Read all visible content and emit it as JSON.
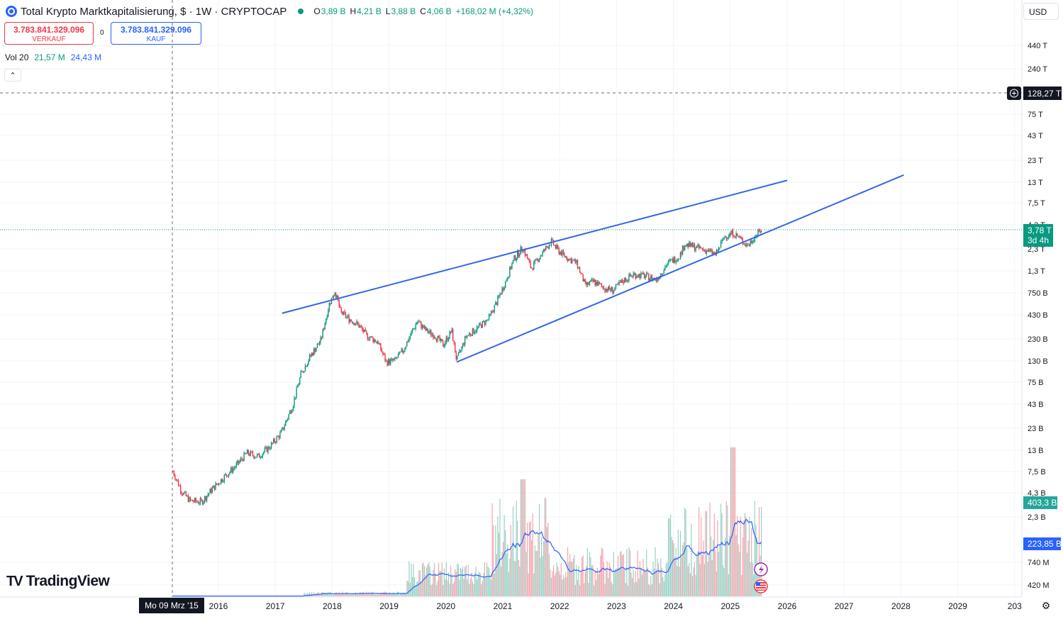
{
  "header": {
    "symbol_title": "Total Krypto Marktkapitalisierung, $ · 1W · CRYPTOCAP",
    "ohlc": [
      {
        "k": "O",
        "v": "3,89 B"
      },
      {
        "k": "H",
        "v": "4,21 B"
      },
      {
        "k": "L",
        "v": "3,88 B"
      },
      {
        "k": "C",
        "v": "4,06 B"
      },
      {
        "k": "",
        "v": "+168,02 M (+4,32%)"
      }
    ]
  },
  "quote": {
    "sell_price": "3.783.841.329.096",
    "sell_label": "VERKAUF",
    "spread": "0",
    "buy_price": "3.783.841.329.096",
    "buy_label": "KAUF"
  },
  "volume_legend": {
    "label": "Vol 20",
    "v1": "21,57 M",
    "v2": "24,43 M"
  },
  "currency": "USD",
  "crosshair_date": "Mo 09 Mrz '15",
  "logo_text": "TradingView",
  "colors": {
    "up": "#089981",
    "down": "#f23645",
    "line": "#2962ff",
    "trend": "#3366e6"
  },
  "chart_data": {
    "type": "candlestick",
    "y_scale": "log",
    "price_axis_labels": [
      "440 T",
      "240 T",
      "75 T",
      "43 T",
      "23 T",
      "13 T",
      "7,5 T",
      "4,3 T",
      "2,3 T",
      "1,3 T",
      "750 B",
      "430 B",
      "230 B",
      "130 B",
      "75 B",
      "43 B",
      "23 B",
      "13 B",
      "7,5 B",
      "4,3 B",
      "2,3 B",
      "740 M",
      "420 M"
    ],
    "x_axis_labels": [
      "2016",
      "2017",
      "2018",
      "2019",
      "2020",
      "2021",
      "2022",
      "2023",
      "2024",
      "2025",
      "2026",
      "2027",
      "2028",
      "2029",
      "203"
    ],
    "crosshair_price": "128,27 T",
    "last_price": {
      "value": "3,78 T",
      "countdown": "3d 4h"
    },
    "volume_last": "403,3 B",
    "volume_ma_last": "223,85 B",
    "price_path": [
      {
        "t": 2015.2,
        "v": 7500000000.0
      },
      {
        "t": 2015.35,
        "v": 4500000000.0
      },
      {
        "t": 2015.5,
        "v": 3500000000.0
      },
      {
        "t": 2015.7,
        "v": 3400000000.0
      },
      {
        "t": 2015.9,
        "v": 4800000000.0
      },
      {
        "t": 2016.1,
        "v": 6500000000.0
      },
      {
        "t": 2016.3,
        "v": 8500000000.0
      },
      {
        "t": 2016.5,
        "v": 12000000000.0
      },
      {
        "t": 2016.7,
        "v": 11000000000.0
      },
      {
        "t": 2016.9,
        "v": 14000000000.0
      },
      {
        "t": 2017.1,
        "v": 20000000000.0
      },
      {
        "t": 2017.3,
        "v": 40000000000.0
      },
      {
        "t": 2017.45,
        "v": 90000000000.0
      },
      {
        "t": 2017.6,
        "v": 140000000000.0
      },
      {
        "t": 2017.8,
        "v": 220000000000.0
      },
      {
        "t": 2017.95,
        "v": 560000000000.0
      },
      {
        "t": 2018.05,
        "v": 780000000000.0
      },
      {
        "t": 2018.15,
        "v": 450000000000.0
      },
      {
        "t": 2018.3,
        "v": 380000000000.0
      },
      {
        "t": 2018.45,
        "v": 330000000000.0
      },
      {
        "t": 2018.6,
        "v": 250000000000.0
      },
      {
        "t": 2018.8,
        "v": 210000000000.0
      },
      {
        "t": 2018.95,
        "v": 125000000000.0
      },
      {
        "t": 2019.1,
        "v": 130000000000.0
      },
      {
        "t": 2019.25,
        "v": 170000000000.0
      },
      {
        "t": 2019.4,
        "v": 270000000000.0
      },
      {
        "t": 2019.5,
        "v": 360000000000.0
      },
      {
        "t": 2019.65,
        "v": 280000000000.0
      },
      {
        "t": 2019.8,
        "v": 250000000000.0
      },
      {
        "t": 2019.95,
        "v": 195000000000.0
      },
      {
        "t": 2020.1,
        "v": 280000000000.0
      },
      {
        "t": 2020.19,
        "v": 130000000000.0
      },
      {
        "t": 2020.35,
        "v": 240000000000.0
      },
      {
        "t": 2020.55,
        "v": 300000000000.0
      },
      {
        "t": 2020.75,
        "v": 380000000000.0
      },
      {
        "t": 2020.9,
        "v": 600000000000.0
      },
      {
        "t": 2021.05,
        "v": 1000000000000.0
      },
      {
        "t": 2021.2,
        "v": 1800000000000.0
      },
      {
        "t": 2021.35,
        "v": 2400000000000.0
      },
      {
        "t": 2021.5,
        "v": 1400000000000.0
      },
      {
        "t": 2021.65,
        "v": 1900000000000.0
      },
      {
        "t": 2021.85,
        "v": 2800000000000.0
      },
      {
        "t": 2021.98,
        "v": 2200000000000.0
      },
      {
        "t": 2022.15,
        "v": 1800000000000.0
      },
      {
        "t": 2022.3,
        "v": 1600000000000.0
      },
      {
        "t": 2022.45,
        "v": 900000000000.0
      },
      {
        "t": 2022.6,
        "v": 1000000000000.0
      },
      {
        "t": 2022.8,
        "v": 830000000000.0
      },
      {
        "t": 2022.95,
        "v": 800000000000.0
      },
      {
        "t": 2023.1,
        "v": 1000000000000.0
      },
      {
        "t": 2023.3,
        "v": 1200000000000.0
      },
      {
        "t": 2023.5,
        "v": 1150000000000.0
      },
      {
        "t": 2023.7,
        "v": 1050000000000.0
      },
      {
        "t": 2023.9,
        "v": 1600000000000.0
      },
      {
        "t": 2024.1,
        "v": 1900000000000.0
      },
      {
        "t": 2024.2,
        "v": 2600000000000.0
      },
      {
        "t": 2024.4,
        "v": 2400000000000.0
      },
      {
        "t": 2024.6,
        "v": 2200000000000.0
      },
      {
        "t": 2024.75,
        "v": 2000000000000.0
      },
      {
        "t": 2024.9,
        "v": 3200000000000.0
      },
      {
        "t": 2025.05,
        "v": 3500000000000.0
      },
      {
        "t": 2025.2,
        "v": 2900000000000.0
      },
      {
        "t": 2025.3,
        "v": 2500000000000.0
      },
      {
        "t": 2025.45,
        "v": 3300000000000.0
      },
      {
        "t": 2025.55,
        "v": 3780000000000.0
      }
    ],
    "trendlines": [
      {
        "from": {
          "t": 2017.12,
          "v": 440000000000.0
        },
        "to": {
          "t": 2026.0,
          "v": 13500000000000.0
        }
      },
      {
        "from": {
          "t": 2020.19,
          "v": 125000000000.0
        },
        "to": {
          "t": 2028.05,
          "v": 15500000000000.0
        }
      }
    ]
  }
}
